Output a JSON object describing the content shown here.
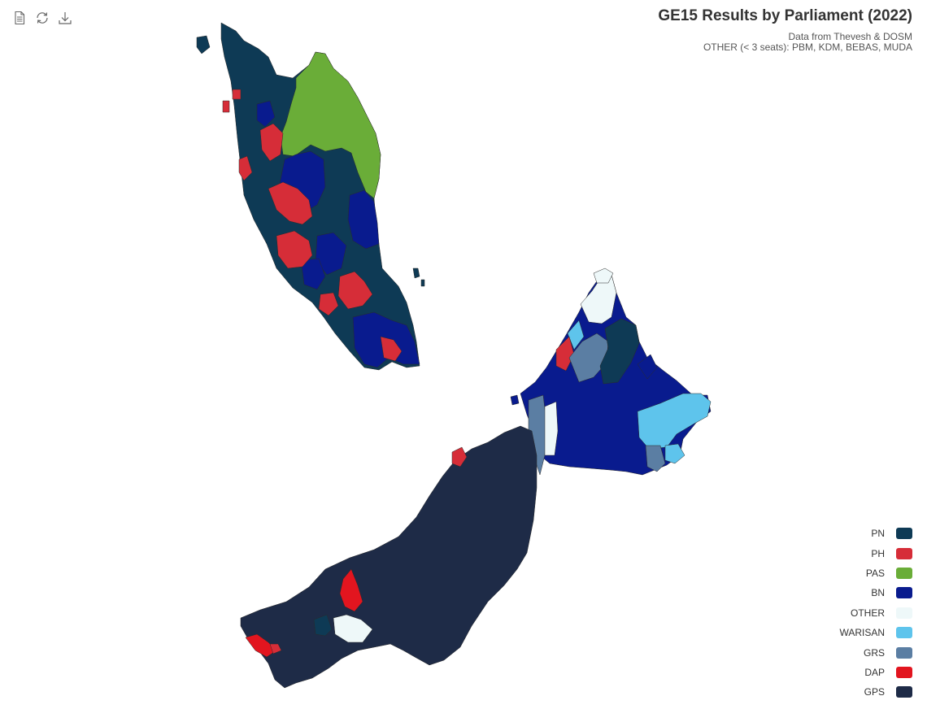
{
  "toolbar": {
    "icons": [
      "data-view-icon",
      "restore-icon",
      "save-image-icon"
    ]
  },
  "header": {
    "title": "GE15 Results by Parliament (2022)",
    "subtitle_line1": "Data from Thevesh & DOSM",
    "subtitle_line2": "OTHER (< 3 seats): PBM, KDM, BEBAS, MUDA"
  },
  "legend": {
    "items": [
      {
        "label": "PN",
        "color": "#0e3a55"
      },
      {
        "label": "PH",
        "color": "#d62d38"
      },
      {
        "label": "PAS",
        "color": "#6aad38"
      },
      {
        "label": "BN",
        "color": "#091b8e"
      },
      {
        "label": "OTHER",
        "color": "#eef8f9"
      },
      {
        "label": "WARISAN",
        "color": "#5ec4ec"
      },
      {
        "label": "GRS",
        "color": "#5b7ea3"
      },
      {
        "label": "DAP",
        "color": "#e2151f"
      },
      {
        "label": "GPS",
        "color": "#1e2b47"
      }
    ]
  }
}
